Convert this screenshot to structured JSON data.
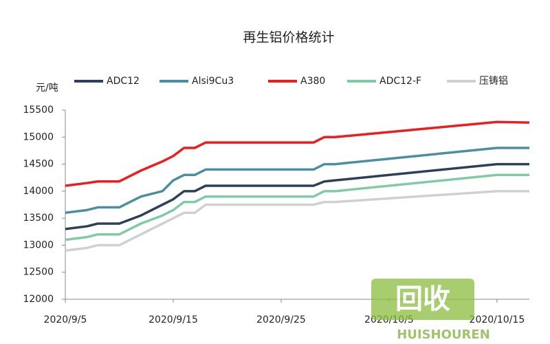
{
  "chart_data": {
    "type": "line",
    "title": "再生铝价格统计",
    "y_label": "元/吨",
    "x": [
      "2020/9/5",
      "2020/9/7",
      "2020/9/8",
      "2020/9/10",
      "2020/9/12",
      "2020/9/14",
      "2020/9/15",
      "2020/9/16",
      "2020/9/17",
      "2020/9/18",
      "2020/9/28",
      "2020/9/29",
      "2020/9/30",
      "2020/10/15",
      "2020/10/18"
    ],
    "xlim": [
      "2020/9/5",
      "2020/10/18"
    ],
    "xticks": [
      "2020/9/5",
      "2020/9/15",
      "2020/9/25",
      "2020/10/5",
      "2020/10/15"
    ],
    "ylim": [
      12000,
      15500
    ],
    "yticks": [
      12000,
      12500,
      13000,
      13500,
      14000,
      14500,
      15000,
      15500
    ],
    "series": [
      {
        "name": "ADC12",
        "color": "#2e4057",
        "values": [
          13300,
          13350,
          13400,
          13400,
          13550,
          13750,
          13850,
          14000,
          14000,
          14100,
          14100,
          14180,
          14200,
          14500,
          14500
        ]
      },
      {
        "name": "Alsi9Cu3",
        "color": "#4a8fa0",
        "values": [
          13600,
          13650,
          13700,
          13700,
          13900,
          14000,
          14200,
          14300,
          14300,
          14400,
          14400,
          14500,
          14500,
          14800,
          14800
        ]
      },
      {
        "name": "A380",
        "color": "#ee1c1c",
        "values": [
          14100,
          14150,
          14180,
          14180,
          14380,
          14550,
          14650,
          14800,
          14800,
          14900,
          14900,
          15000,
          15000,
          15280,
          15270
        ]
      },
      {
        "name": "ADC12-F",
        "color": "#7fcba6",
        "values": [
          13100,
          13150,
          13200,
          13200,
          13400,
          13550,
          13650,
          13800,
          13800,
          13900,
          13900,
          14000,
          14000,
          14300,
          14300
        ]
      },
      {
        "name": "压铸铝",
        "color": "#d0d0d0",
        "values": [
          12900,
          12950,
          13000,
          13000,
          13200,
          13400,
          13500,
          13600,
          13600,
          13750,
          13750,
          13800,
          13800,
          14000,
          14000
        ]
      }
    ]
  },
  "watermark": {
    "logo": "回收",
    "brand": "HUISHOUREN"
  }
}
